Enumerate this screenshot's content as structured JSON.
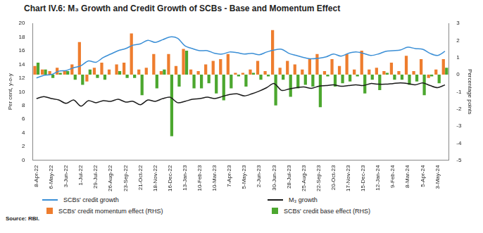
{
  "chart_data": {
    "type": "bar",
    "title": "Chart IV.6: M₃ Growth and Credit Growth of SCBs - Base and Momentum Effect",
    "source": "Source: RBI.",
    "y_label": "Per cent, y-o-y",
    "y2_label": "Percentage points",
    "categories": [
      "8-Apr-22",
      null,
      "6-May-22",
      null,
      "3-Jun-22",
      null,
      "1-Jul-22",
      null,
      "29-Jul-22",
      null,
      "26-Aug-22",
      null,
      "23-Sep-22",
      null,
      "21-Oct-22",
      null,
      "18-Nov-22",
      null,
      "16-Dec-22",
      null,
      "13-Jan-23",
      null,
      "10-Feb-23",
      null,
      "10-Mar-23",
      null,
      "7-Apr-23",
      null,
      "5-May-23",
      null,
      "2-Jun-23",
      null,
      "30-Jun-23",
      null,
      "28-Jul-23",
      null,
      "25-Aug-23",
      null,
      "22-Sep-23",
      null,
      "20-Oct-23",
      null,
      "17-Nov-23",
      null,
      "15-Dec-23",
      null,
      "12-Jan-24",
      null,
      "9-Feb-24",
      null,
      "8-Mar-24",
      null,
      "5-Apr-24",
      null,
      "3-May-24",
      null
    ],
    "ylim": [
      0,
      20
    ],
    "yticks": [
      0,
      2,
      4,
      6,
      8,
      10,
      12,
      14,
      16,
      18,
      20
    ],
    "y2lim": [
      -5,
      3
    ],
    "y2ticks": [
      -5,
      -4,
      -3,
      -2,
      -1,
      0,
      1,
      2,
      3
    ],
    "grid": false,
    "legend": "bottom",
    "series": [
      {
        "name": "SCBs' credit growth",
        "type": "line",
        "color": "#3b8fd6",
        "values": [
          12.0,
          12.4,
          12.5,
          13.0,
          13.1,
          13.5,
          13.8,
          14.5,
          14.3,
          15.0,
          15.5,
          16.0,
          16.3,
          16.8,
          17.0,
          17.5,
          17.2,
          17.6,
          18.0,
          17.8,
          16.7,
          16.3,
          16.0,
          16.0,
          15.6,
          15.5,
          15.8,
          15.7,
          15.5,
          15.6,
          15.4,
          15.8,
          16.1,
          16.2,
          15.6,
          15.3,
          15.0,
          14.8,
          14.9,
          15.1,
          15.5,
          15.2,
          15.6,
          15.8,
          15.6,
          15.3,
          15.5,
          15.9,
          16.0,
          16.1,
          16.5,
          16.3,
          16.2,
          15.6,
          15.3,
          15.9
        ]
      },
      {
        "name": "M₃ growth",
        "type": "line",
        "color": "#1a1a1a",
        "values": [
          9.0,
          9.3,
          9.0,
          8.8,
          8.3,
          8.8,
          7.9,
          8.7,
          8.4,
          8.7,
          8.6,
          8.9,
          8.5,
          8.6,
          8.1,
          8.8,
          8.6,
          9.0,
          9.2,
          8.4,
          8.6,
          8.9,
          9.0,
          9.2,
          9.0,
          9.3,
          9.6,
          9.7,
          9.4,
          9.7,
          10.1,
          10.6,
          11.2,
          10.2,
          10.4,
          10.6,
          10.7,
          10.5,
          10.8,
          10.9,
          11.0,
          10.8,
          10.9,
          11.0,
          10.9,
          11.2,
          11.1,
          11.1,
          11.2,
          11.3,
          11.2,
          11.0,
          11.3,
          10.9,
          10.6,
          11.0
        ]
      },
      {
        "name": "SCBs' credit momentum effect (RHS)",
        "type": "bar",
        "axis": "y2",
        "color": "#ee7d2e",
        "values": [
          0.5,
          0.3,
          0.2,
          0.4,
          0.2,
          0.6,
          1.9,
          -0.4,
          0.4,
          0.7,
          0.3,
          0.6,
          0.7,
          2.4,
          0.3,
          0.4,
          1.2,
          0.2,
          1.2,
          0.5,
          1.5,
          0.3,
          0.2,
          0.6,
          0.8,
          0.9,
          1.2,
          0.1,
          0.1,
          0.3,
          0.8,
          0.2,
          2.6,
          0.4,
          0.8,
          0.6,
          0.3,
          0.9,
          1.2,
          0.2,
          0.9,
          0.5,
          1.2,
          0.3,
          1.4,
          0.3,
          0.4,
          0.2,
          0.7,
          0.2,
          1.1,
          0.2,
          0.9,
          -0.2,
          0.3,
          0.9
        ]
      },
      {
        "name": "SCBs' credit base effect (RHS)",
        "type": "bar",
        "axis": "y2",
        "color": "#4ca72f",
        "values": [
          0.7,
          0.3,
          -0.2,
          0.1,
          0.2,
          -0.3,
          -0.6,
          0.3,
          -0.2,
          -0.3,
          0.0,
          0.2,
          -0.2,
          -0.2,
          -1.2,
          0.0,
          -0.8,
          0.3,
          -3.6,
          -0.7,
          1.4,
          -0.8,
          -0.8,
          -0.5,
          -1.1,
          -1.5,
          -0.8,
          -0.1,
          -0.7,
          0.1,
          -0.3,
          -0.1,
          -1.8,
          -0.3,
          -1.3,
          -0.8,
          -0.6,
          -0.7,
          -1.9,
          -0.1,
          -0.7,
          -0.5,
          -0.4,
          -0.1,
          -1.1,
          -0.3,
          -0.9,
          0.1,
          -0.3,
          -0.3,
          -0.6,
          -0.4,
          -1.2,
          -0.1,
          -0.5,
          0.4
        ]
      }
    ]
  }
}
